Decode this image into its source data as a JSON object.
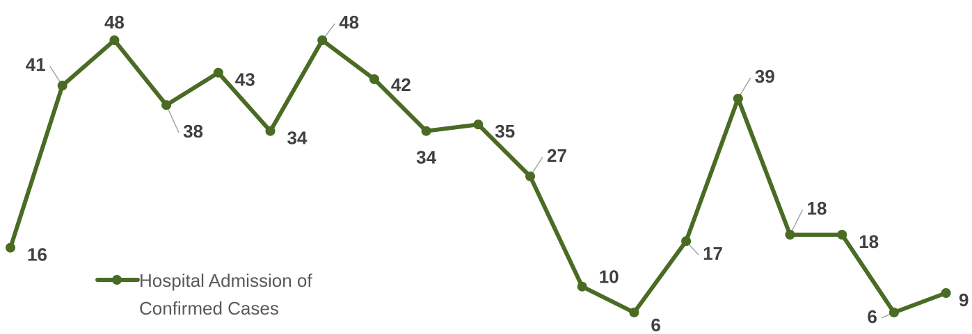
{
  "chart_data": {
    "type": "line",
    "series": [
      {
        "name": "Hospital Admission of Confirmed Cases",
        "values": [
          16,
          41,
          48,
          38,
          43,
          34,
          48,
          42,
          34,
          35,
          27,
          10,
          6,
          17,
          39,
          18,
          18,
          6,
          9
        ],
        "data_labels": [
          "16",
          "41",
          "48",
          "38",
          "43",
          "34",
          "48",
          "42",
          "34",
          "35",
          "27",
          "10",
          "6",
          "17",
          "39",
          "18",
          "18",
          "6",
          "9"
        ],
        "color": "#4a6b24"
      }
    ],
    "legend": {
      "position": "bottom-left",
      "lines": [
        "Hospital Admission of",
        "Confirmed Cases"
      ]
    },
    "grid": false,
    "axes_visible": false,
    "data_labels_visible": true,
    "label_color": "#404040",
    "leader_line_color": "#a6a6a6"
  }
}
